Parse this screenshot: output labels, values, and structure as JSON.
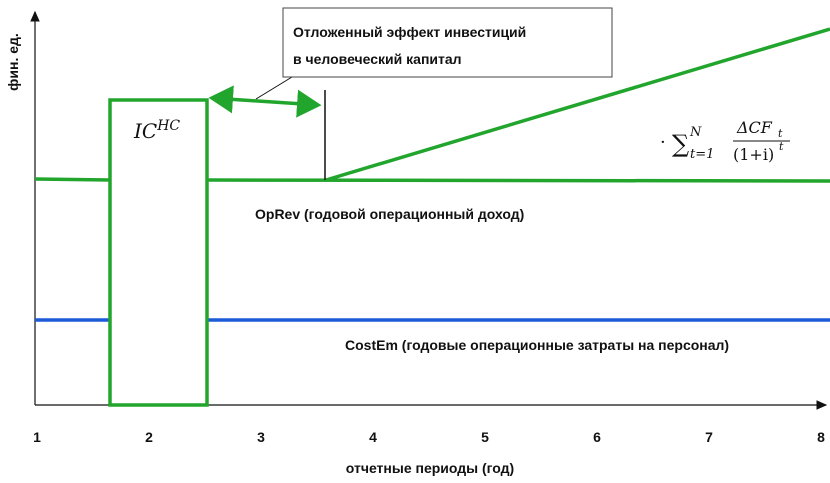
{
  "y_axis_label": "фин. ед.",
  "x_axis_label": "отчетные периоды (год)",
  "x_ticks": [
    1,
    2,
    3,
    4,
    5,
    6,
    7,
    8
  ],
  "callout": {
    "lines": [
      "Отложенный эффект инвестиций",
      "в человеческий капитал"
    ]
  },
  "investment_label": {
    "base": "IC",
    "sup": "HC"
  },
  "formula": {
    "prefix": "·",
    "sum": "∑",
    "sub": "t=1",
    "sup": "N",
    "numerator": "ΔCF",
    "numerator_sub": "t",
    "denominator": "(1+i)",
    "denominator_sup": "t"
  },
  "oprev_label": "OpRev (годовой операционный доход)",
  "costem_label": "CostEm (годовые операционные затраты на персонал)"
}
